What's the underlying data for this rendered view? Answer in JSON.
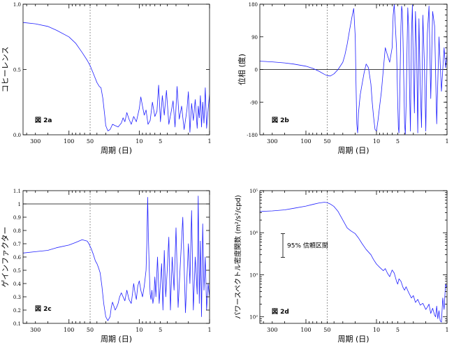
{
  "colors": {
    "series": "#2020ff",
    "axis": "#000000",
    "marker": "#555555"
  },
  "chart_data": [
    {
      "type": "line",
      "panel_label": "図 2a",
      "xlabel": "周期 (日)",
      "ylabel": "コヒーレンス",
      "xscale": "log",
      "xreversed": true,
      "xlim": [
        450,
        1
      ],
      "xticks": [
        300,
        100,
        50,
        10,
        5,
        1
      ],
      "xtick_labels": [
        "300",
        "100",
        "50",
        "10",
        "5",
        "1"
      ],
      "yscale": "linear",
      "ylim": [
        0,
        1
      ],
      "yticks": [
        0,
        0.5,
        1
      ],
      "ytick_labels": [
        "0.0",
        "0.5",
        "1.0"
      ],
      "marker_period": 50,
      "series": [
        {
          "x": [
            450,
            300,
            200,
            150,
            100,
            80,
            65,
            55,
            50,
            45,
            40,
            37,
            35,
            33,
            31,
            30,
            28,
            26,
            24,
            22,
            20,
            18,
            17,
            16,
            15,
            14,
            13,
            12,
            11,
            10,
            9.5,
            9,
            8.5,
            8,
            7.5,
            7,
            6.5,
            6,
            5.6,
            5.3,
            5,
            4.7,
            4.4,
            4.1,
            3.8,
            3.5,
            3.3,
            3.1,
            2.9,
            2.7,
            2.5,
            2.3,
            2.1,
            2.0,
            1.9,
            1.8,
            1.7,
            1.6,
            1.5,
            1.45,
            1.4,
            1.35,
            1.3,
            1.25,
            1.2,
            1.15,
            1.1,
            1.05,
            1.0
          ],
          "y": [
            0.86,
            0.85,
            0.83,
            0.8,
            0.75,
            0.7,
            0.63,
            0.57,
            0.53,
            0.47,
            0.4,
            0.37,
            0.36,
            0.28,
            0.15,
            0.07,
            0.03,
            0.04,
            0.08,
            0.07,
            0.06,
            0.09,
            0.13,
            0.1,
            0.17,
            0.12,
            0.08,
            0.14,
            0.1,
            0.2,
            0.29,
            0.22,
            0.15,
            0.19,
            0.08,
            0.11,
            0.25,
            0.14,
            0.18,
            0.38,
            0.1,
            0.3,
            0.15,
            0.34,
            0.08,
            0.18,
            0.26,
            0.06,
            0.37,
            0.12,
            0.22,
            0.04,
            0.19,
            0.33,
            0.02,
            0.24,
            0.11,
            0.27,
            0.05,
            0.22,
            0.13,
            0.3,
            0.06,
            0.25,
            0.09,
            0.36,
            0.05,
            0.19,
            0.31
          ]
        }
      ]
    },
    {
      "type": "line",
      "panel_label": "図 2b",
      "xlabel": "周期 (日)",
      "ylabel": "位相 (度)",
      "xscale": "log",
      "xreversed": true,
      "xlim": [
        450,
        1
      ],
      "xticks": [
        300,
        100,
        50,
        10,
        5,
        1
      ],
      "xtick_labels": [
        "300",
        "100",
        "50",
        "10",
        "5",
        "1"
      ],
      "yscale": "linear",
      "ylim": [
        -180,
        180
      ],
      "yticks": [
        -180,
        -90,
        0,
        90,
        180
      ],
      "ytick_labels": [
        "-180",
        "-90",
        "0",
        "90",
        "180"
      ],
      "reference_line": 0,
      "marker_period": 50,
      "series": [
        {
          "x": [
            450,
            300,
            200,
            150,
            100,
            80,
            65,
            55,
            50,
            45,
            40,
            35,
            30,
            28,
            26,
            24,
            22,
            21,
            20,
            19.5,
            19,
            18.5,
            18,
            17,
            16,
            15,
            14,
            13,
            12,
            11.5,
            11,
            10.5,
            10,
            9.5,
            9,
            8.5,
            8,
            7.5,
            7,
            6.5,
            6,
            5.8,
            5.6,
            5.4,
            5.2,
            5.0,
            4.9,
            4.8,
            4.7,
            4.6,
            4.5,
            4.4,
            4.3,
            4.2,
            4.1,
            4.0,
            3.9,
            3.8,
            3.7,
            3.6,
            3.5,
            3.4,
            3.3,
            3.2,
            3.1,
            3.0,
            2.9,
            2.8,
            2.7,
            2.6,
            2.5,
            2.4,
            2.3,
            2.2,
            2.1,
            2.0,
            1.9,
            1.8,
            1.7,
            1.6,
            1.5,
            1.4,
            1.3,
            1.2,
            1.1,
            1.05,
            1.0
          ],
          "y": [
            23,
            21,
            18,
            15,
            9,
            3,
            -5,
            -13,
            -17,
            -18,
            -12,
            0,
            20,
            40,
            70,
            110,
            150,
            168,
            90,
            -40,
            -150,
            -175,
            -120,
            -70,
            -40,
            -10,
            15,
            5,
            -40,
            -90,
            -130,
            -165,
            -170,
            -140,
            -100,
            -60,
            0,
            60,
            40,
            20,
            60,
            150,
            180,
            120,
            60,
            -90,
            -160,
            -175,
            -100,
            20,
            120,
            175,
            160,
            80,
            -30,
            -150,
            -178,
            -100,
            40,
            170,
            120,
            -50,
            -170,
            90,
            178,
            0,
            -120,
            160,
            60,
            -175,
            140,
            -40,
            -160,
            150,
            20,
            -170,
            100,
            175,
            -80,
            160,
            120,
            -150,
            90,
            -60,
            60,
            5,
            40
          ]
        }
      ]
    },
    {
      "type": "line",
      "panel_label": "図 2c",
      "xlabel": "周期 (日)",
      "ylabel": "ゲインファクター",
      "xscale": "log",
      "xreversed": true,
      "xlim": [
        450,
        1
      ],
      "xticks": [
        300,
        100,
        50,
        10,
        5,
        1
      ],
      "xtick_labels": [
        "300",
        "100",
        "50",
        "10",
        "5",
        "1"
      ],
      "yscale": "linear",
      "ylim": [
        0.1,
        1.1
      ],
      "yticks": [
        0.1,
        0.2,
        0.3,
        0.4,
        0.5,
        0.6,
        0.7,
        0.8,
        0.9,
        1,
        1.1
      ],
      "ytick_labels": [
        "0.1",
        "0.2",
        "0.3",
        "0.4",
        "0.5",
        "0.6",
        "0.7",
        "0.8",
        "0.9",
        "1",
        "1.1"
      ],
      "reference_line": 1,
      "marker_period": 50,
      "series": [
        {
          "x": [
            450,
            300,
            200,
            150,
            100,
            80,
            65,
            55,
            52,
            50,
            48,
            45,
            42,
            40,
            38,
            36,
            34,
            32,
            30,
            28,
            26,
            25,
            24,
            23,
            22,
            21,
            20,
            19,
            18,
            17,
            16,
            15,
            14,
            13,
            12.5,
            12,
            11.5,
            11,
            10.5,
            10,
            9.5,
            9,
            8.5,
            8,
            7.8,
            7.6,
            7.4,
            7.2,
            7.0,
            6.8,
            6.6,
            6.4,
            6.2,
            6.0,
            5.8,
            5.5,
            5.2,
            5.0,
            4.8,
            4.6,
            4.4,
            4.2,
            4.0,
            3.8,
            3.6,
            3.4,
            3.2,
            3.0,
            2.8,
            2.6,
            2.4,
            2.2,
            2.0,
            1.9,
            1.8,
            1.7,
            1.6,
            1.5,
            1.45,
            1.4,
            1.35,
            1.3,
            1.25,
            1.2,
            1.15,
            1.1,
            1.05,
            1.0
          ],
          "y": [
            0.63,
            0.64,
            0.65,
            0.67,
            0.69,
            0.71,
            0.73,
            0.72,
            0.7,
            0.68,
            0.66,
            0.62,
            0.57,
            0.55,
            0.52,
            0.48,
            0.38,
            0.25,
            0.15,
            0.12,
            0.15,
            0.22,
            0.26,
            0.23,
            0.2,
            0.22,
            0.25,
            0.3,
            0.33,
            0.3,
            0.27,
            0.35,
            0.28,
            0.25,
            0.32,
            0.4,
            0.33,
            0.28,
            0.38,
            0.42,
            0.35,
            0.3,
            0.38,
            0.5,
            0.7,
            1.05,
            0.75,
            0.5,
            0.32,
            0.28,
            0.35,
            0.25,
            0.3,
            0.45,
            0.3,
            0.6,
            0.25,
            0.4,
            0.55,
            0.2,
            0.65,
            0.3,
            0.5,
            0.75,
            0.2,
            0.6,
            0.35,
            0.82,
            0.22,
            0.55,
            0.9,
            0.18,
            0.7,
            0.4,
            0.95,
            0.2,
            0.6,
            0.32,
            1.06,
            0.25,
            0.72,
            0.15,
            0.85,
            0.35,
            0.6,
            0.2,
            0.4,
            0.3
          ]
        }
      ]
    },
    {
      "type": "line",
      "panel_label": "図 2d",
      "xlabel": "周期 (日)",
      "ylabel": "パワースペクトル密度関数 (m²/s²/cpd)",
      "xscale": "log",
      "xreversed": true,
      "xlim": [
        450,
        1
      ],
      "xticks": [
        300,
        100,
        50,
        10,
        5,
        1
      ],
      "xtick_labels": [
        "300",
        "100",
        "50",
        "10",
        "5",
        "1"
      ],
      "yscale": "log",
      "ylim": [
        70,
        100000
      ],
      "yticks": [
        100,
        1000,
        10000,
        100000
      ],
      "ytick_labels": [
        "10²",
        "10³",
        "10⁴",
        "10⁵"
      ],
      "marker_period": 50,
      "confidence_label": "95% 信頼区間",
      "confidence_interval": [
        2600,
        9500
      ],
      "series": [
        {
          "x": [
            450,
            300,
            200,
            150,
            100,
            80,
            65,
            55,
            50,
            45,
            40,
            35,
            30,
            26,
            23,
            20,
            18,
            16,
            14,
            12,
            11,
            10,
            9,
            8,
            7.5,
            7,
            6.5,
            6,
            5.6,
            5.2,
            5.0,
            4.8,
            4.5,
            4.2,
            4.0,
            3.8,
            3.5,
            3.2,
            3.0,
            2.8,
            2.6,
            2.4,
            2.2,
            2.0,
            1.9,
            1.8,
            1.7,
            1.6,
            1.5,
            1.45,
            1.4,
            1.35,
            1.3,
            1.25,
            1.2,
            1.15,
            1.1,
            1.05,
            1.0
          ],
          "y": [
            32000,
            33000,
            35000,
            38000,
            43000,
            47000,
            51000,
            53000,
            52000,
            48000,
            42000,
            32000,
            20000,
            13000,
            11000,
            9500,
            7500,
            5500,
            4000,
            3000,
            2300,
            1800,
            1500,
            1250,
            1400,
            1100,
            900,
            1300,
            1100,
            700,
            600,
            800,
            700,
            500,
            430,
            520,
            380,
            280,
            320,
            220,
            260,
            190,
            210,
            150,
            170,
            200,
            120,
            160,
            110,
            100,
            180,
            90,
            140,
            80,
            75,
            280,
            150,
            600,
            480
          ]
        }
      ]
    }
  ]
}
